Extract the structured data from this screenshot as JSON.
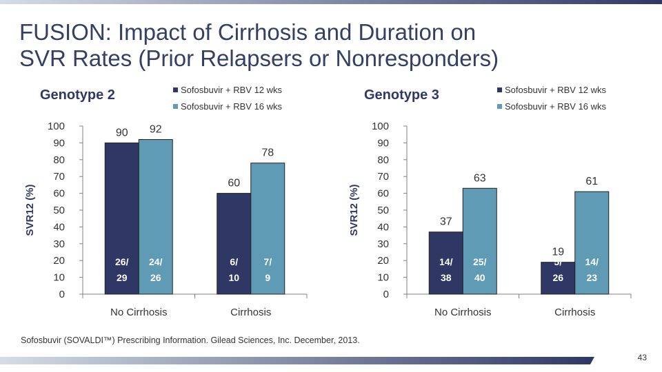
{
  "slide": {
    "title_lines": [
      "FUSION: Impact of Cirrhosis and Duration on",
      "SVR Rates (Prior Relapsers or Nonresponders)"
    ],
    "citation": "Sofosbuvir (SOVALDI™) Prescribing Information. Gilead Sciences, Inc. December, 2013.",
    "page_number": "43"
  },
  "colors": {
    "title": "#333f63",
    "series_12wk": "#2f3864",
    "series_16wk": "#5f9bb4",
    "bar_gradient_light": "#d4dde6",
    "bar_dark": "#2f3864"
  },
  "chart_data": [
    {
      "type": "bar",
      "title": "Genotype 2",
      "ylabel": "SVR12 (%)",
      "xlabel": "",
      "ylim": [
        0,
        100
      ],
      "yticks": [
        0,
        10,
        20,
        30,
        40,
        50,
        60,
        70,
        80,
        90,
        100
      ],
      "categories": [
        "No Cirrhosis",
        "Cirrhosis"
      ],
      "legend_position": "top-right",
      "grid": false,
      "series": [
        {
          "name": "Sofosbuvir + RBV 12 wks",
          "color": "#2f3864",
          "values": [
            90,
            60
          ],
          "counts": [
            [
              "26/",
              "29"
            ],
            [
              "6/",
              "10"
            ]
          ]
        },
        {
          "name": "Sofosbuvir + RBV 16 wks",
          "color": "#5f9bb4",
          "values": [
            92,
            78
          ],
          "counts": [
            [
              "24/",
              "26"
            ],
            [
              "7/",
              "9"
            ]
          ]
        }
      ]
    },
    {
      "type": "bar",
      "title": "Genotype 3",
      "ylabel": "SVR12 (%)",
      "xlabel": "",
      "ylim": [
        0,
        100
      ],
      "yticks": [
        0,
        10,
        20,
        30,
        40,
        50,
        60,
        70,
        80,
        90,
        100
      ],
      "categories": [
        "No Cirrhosis",
        "Cirrhosis"
      ],
      "legend_position": "top-right",
      "grid": false,
      "series": [
        {
          "name": "Sofosbuvir + RBV 12 wks",
          "color": "#2f3864",
          "values": [
            37,
            19
          ],
          "counts": [
            [
              "14/",
              "38"
            ],
            [
              "5/",
              "26"
            ]
          ]
        },
        {
          "name": "Sofosbuvir + RBV 16 wks",
          "color": "#5f9bb4",
          "values": [
            63,
            61
          ],
          "counts": [
            [
              "25/",
              "40"
            ],
            [
              "14/",
              "23"
            ]
          ]
        }
      ]
    }
  ]
}
